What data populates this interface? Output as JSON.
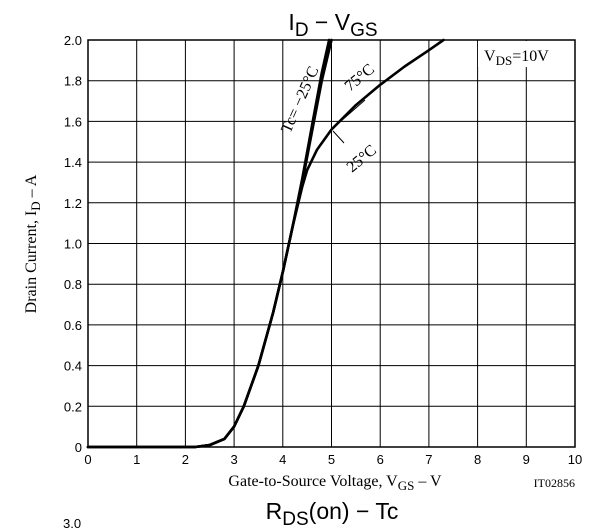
{
  "chart_data": {
    "type": "line",
    "title": {
      "main": "I",
      "sub1": "D",
      "dash": " − V",
      "sub2": "GS"
    },
    "xlabel": {
      "pre": "Gate-to-Source Voltage, V",
      "sub": "GS",
      "post": "  –  V"
    },
    "ylabel": {
      "pre": "Drain Current, I",
      "sub": "D",
      "post": "  –  A"
    },
    "xlim": [
      0,
      10
    ],
    "ylim": [
      0,
      2.0
    ],
    "xticks": [
      "0",
      "1",
      "2",
      "3",
      "4",
      "5",
      "6",
      "7",
      "8",
      "9",
      "10"
    ],
    "yticks": [
      "0",
      "0.2",
      "0.4",
      "0.6",
      "0.8",
      "1.0",
      "1.2",
      "1.4",
      "1.6",
      "1.8",
      "2.0"
    ],
    "grid": true,
    "condition": {
      "pre": "V",
      "sub": "DS",
      "post": "=10V"
    },
    "figure_code": "IT02856",
    "series": [
      {
        "name": "Tc= −25°C",
        "x": [
          0,
          2.2,
          2.5,
          2.8,
          3.0,
          3.2,
          3.5,
          3.8,
          4.0,
          4.2,
          4.4,
          4.6,
          4.8,
          4.95
        ],
        "y": [
          0,
          0,
          0.01,
          0.04,
          0.1,
          0.2,
          0.4,
          0.66,
          0.86,
          1.08,
          1.32,
          1.58,
          1.84,
          2.0
        ]
      },
      {
        "name": "25°C",
        "x": [
          0,
          2.2,
          2.5,
          2.8,
          3.0,
          3.2,
          3.5,
          3.8,
          4.0,
          4.2,
          4.4,
          4.5,
          4.7,
          5.0,
          5.5,
          6.0,
          6.5,
          7.0,
          7.3
        ],
        "y": [
          0,
          0,
          0.01,
          0.04,
          0.1,
          0.2,
          0.4,
          0.66,
          0.86,
          1.08,
          1.28,
          1.36,
          1.46,
          1.56,
          1.68,
          1.78,
          1.87,
          1.95,
          2.0
        ]
      },
      {
        "name": "75°C",
        "x": [
          0,
          2.2,
          2.5,
          2.8,
          3.0,
          3.2,
          3.5,
          3.8,
          4.0,
          4.2,
          4.4,
          4.6,
          4.8,
          5.0
        ],
        "y": [
          0,
          0,
          0.01,
          0.04,
          0.1,
          0.2,
          0.4,
          0.66,
          0.86,
          1.08,
          1.3,
          1.55,
          1.8,
          2.0
        ]
      }
    ],
    "curve_labels": [
      "Tc= −25°C",
      "75°C",
      "25°C"
    ]
  },
  "next_chart_title": {
    "pre": "R",
    "sub": "DS",
    "post": "(on) − Tc"
  },
  "cut_off_tick": "3.0"
}
